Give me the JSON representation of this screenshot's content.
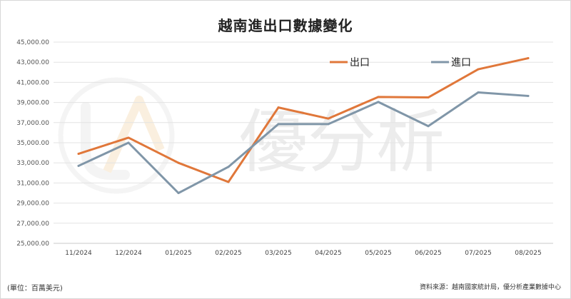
{
  "chart_data": {
    "type": "line",
    "title": "越南進出口數據變化",
    "categories": [
      "11/2024",
      "12/2024",
      "01/2025",
      "02/2025",
      "03/2025",
      "04/2025",
      "05/2025",
      "06/2025",
      "07/2025",
      "08/2025"
    ],
    "series": [
      {
        "name": "出口",
        "color": "#e0773a",
        "values": [
          33900,
          35500,
          33000,
          31100,
          38500,
          37400,
          39550,
          39500,
          42300,
          43400
        ]
      },
      {
        "name": "進口",
        "color": "#8096a8",
        "values": [
          32700,
          35000,
          30000,
          32600,
          36850,
          36850,
          39050,
          36650,
          40000,
          39650
        ]
      }
    ],
    "ylim": [
      25000,
      45000
    ],
    "yticks": [
      "25,000.00",
      "27,000.00",
      "29,000.00",
      "31,000.00",
      "33,000.00",
      "35,000.00",
      "37,000.00",
      "39,000.00",
      "41,000.00",
      "43,000.00",
      "45,000.00"
    ],
    "grid": true,
    "legend_position": "top-right"
  },
  "unit_note": "(單位：百萬美元)",
  "source_note": "資料來源：越南國家統計局，優分析產業數據中心",
  "watermark": {
    "text": "優分析",
    "icon": "uanalyze-logo-icon"
  }
}
